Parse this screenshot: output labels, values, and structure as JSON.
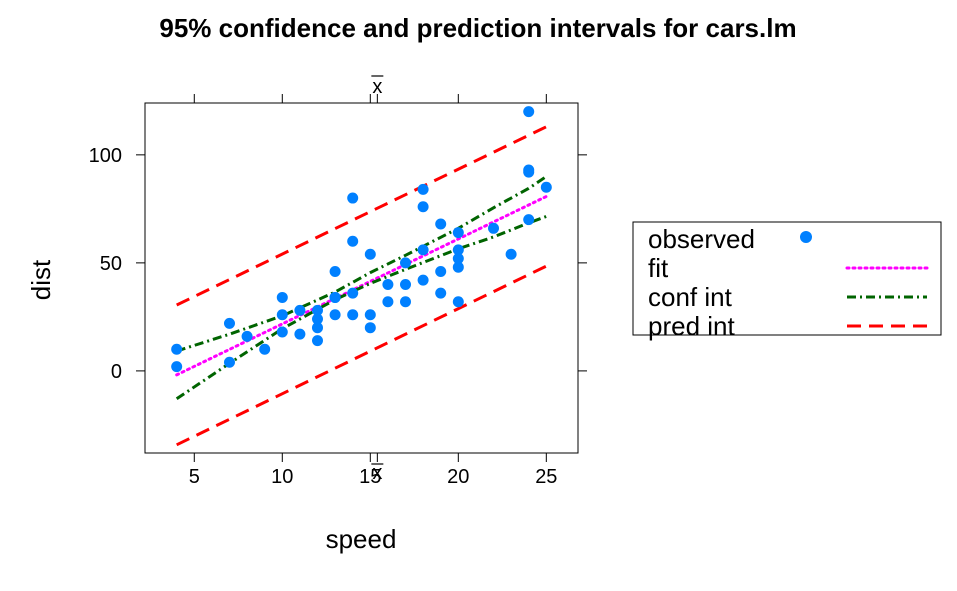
{
  "chart_data": {
    "type": "scatter",
    "title": "95% confidence and prediction intervals for cars.lm",
    "xlabel": "speed",
    "ylabel": "dist",
    "xlim": [
      2.2,
      26.8
    ],
    "ylim": [
      -38,
      124
    ],
    "xticks": [
      5,
      10,
      15,
      20,
      25
    ],
    "yticks": [
      0,
      50,
      100
    ],
    "xbar": 15.4,
    "xbar_label": "x",
    "grid": false,
    "legend_position": "right",
    "colors": {
      "observed": "#0080ff",
      "fit": "#ff00ff",
      "conf": "#006400",
      "pred": "#ff0000"
    },
    "observed": [
      {
        "x": 4,
        "y": 2
      },
      {
        "x": 4,
        "y": 10
      },
      {
        "x": 7,
        "y": 4
      },
      {
        "x": 7,
        "y": 22
      },
      {
        "x": 8,
        "y": 16
      },
      {
        "x": 9,
        "y": 10
      },
      {
        "x": 10,
        "y": 18
      },
      {
        "x": 10,
        "y": 26
      },
      {
        "x": 10,
        "y": 34
      },
      {
        "x": 11,
        "y": 17
      },
      {
        "x": 11,
        "y": 28
      },
      {
        "x": 12,
        "y": 14
      },
      {
        "x": 12,
        "y": 20
      },
      {
        "x": 12,
        "y": 24
      },
      {
        "x": 12,
        "y": 28
      },
      {
        "x": 13,
        "y": 26
      },
      {
        "x": 13,
        "y": 34
      },
      {
        "x": 13,
        "y": 34
      },
      {
        "x": 13,
        "y": 46
      },
      {
        "x": 14,
        "y": 26
      },
      {
        "x": 14,
        "y": 36
      },
      {
        "x": 14,
        "y": 60
      },
      {
        "x": 14,
        "y": 80
      },
      {
        "x": 15,
        "y": 20
      },
      {
        "x": 15,
        "y": 26
      },
      {
        "x": 15,
        "y": 54
      },
      {
        "x": 16,
        "y": 32
      },
      {
        "x": 16,
        "y": 40
      },
      {
        "x": 17,
        "y": 32
      },
      {
        "x": 17,
        "y": 40
      },
      {
        "x": 17,
        "y": 50
      },
      {
        "x": 18,
        "y": 42
      },
      {
        "x": 18,
        "y": 56
      },
      {
        "x": 18,
        "y": 76
      },
      {
        "x": 18,
        "y": 84
      },
      {
        "x": 19,
        "y": 36
      },
      {
        "x": 19,
        "y": 46
      },
      {
        "x": 19,
        "y": 68
      },
      {
        "x": 20,
        "y": 32
      },
      {
        "x": 20,
        "y": 48
      },
      {
        "x": 20,
        "y": 52
      },
      {
        "x": 20,
        "y": 56
      },
      {
        "x": 20,
        "y": 64
      },
      {
        "x": 22,
        "y": 66
      },
      {
        "x": 23,
        "y": 54
      },
      {
        "x": 24,
        "y": 70
      },
      {
        "x": 24,
        "y": 92
      },
      {
        "x": 24,
        "y": 93
      },
      {
        "x": 24,
        "y": 120
      },
      {
        "x": 25,
        "y": 85
      }
    ],
    "series": [
      {
        "name": "fit",
        "style": "dotted",
        "x": [
          4,
          25
        ],
        "y": [
          -1.85,
          80.73
        ]
      },
      {
        "name": "conf int",
        "part": "lower",
        "style": "dashdot",
        "x": [
          4,
          7,
          10,
          13,
          15,
          17,
          20,
          22,
          24,
          25
        ],
        "y": [
          -12.9,
          3.5,
          19.5,
          33.0,
          40.5,
          47.0,
          56.5,
          62.0,
          68.5,
          71.5
        ]
      },
      {
        "name": "conf int",
        "part": "upper",
        "style": "dashdot",
        "x": [
          4,
          7,
          10,
          13,
          15,
          17,
          20,
          22,
          24,
          25
        ],
        "y": [
          9.2,
          17.0,
          25.5,
          36.5,
          45.5,
          53.5,
          66.0,
          75.5,
          84.5,
          90.0
        ]
      },
      {
        "name": "pred int",
        "part": "lower",
        "style": "dashed",
        "x": [
          4,
          25
        ],
        "y": [
          -34.2,
          48.5
        ]
      },
      {
        "name": "pred int",
        "part": "upper",
        "style": "dashed",
        "x": [
          4,
          25
        ],
        "y": [
          30.5,
          113.0
        ]
      }
    ],
    "legend": [
      {
        "label": "observed",
        "kind": "point",
        "color": "#0080ff"
      },
      {
        "label": "fit",
        "kind": "dotted",
        "color": "#ff00ff"
      },
      {
        "label": "conf int",
        "kind": "dashdot",
        "color": "#006400"
      },
      {
        "label": "pred int",
        "kind": "dashed",
        "color": "#ff0000"
      }
    ]
  }
}
